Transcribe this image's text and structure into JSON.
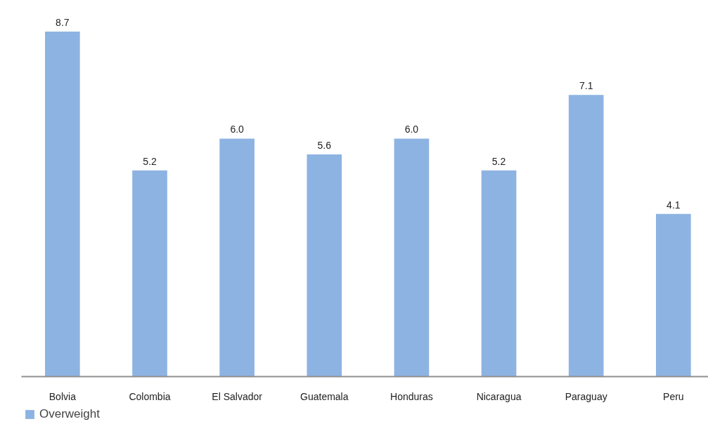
{
  "chart_data": {
    "type": "bar",
    "categories": [
      "Bolvia",
      "Colombia",
      "El Salvador",
      "Guatemala",
      "Honduras",
      "Nicaragua",
      "Paraguay",
      "Peru"
    ],
    "series": [
      {
        "name": "Overweight",
        "color": "#8db3e2",
        "values": [
          8.7,
          5.2,
          6.0,
          5.6,
          6.0,
          5.2,
          7.1,
          4.1
        ],
        "value_labels": [
          "8.7",
          "5.2",
          "6.0",
          "5.6",
          "6.0",
          "5.2",
          "7.1",
          "4.1"
        ]
      }
    ],
    "legend": "bottom left"
  }
}
